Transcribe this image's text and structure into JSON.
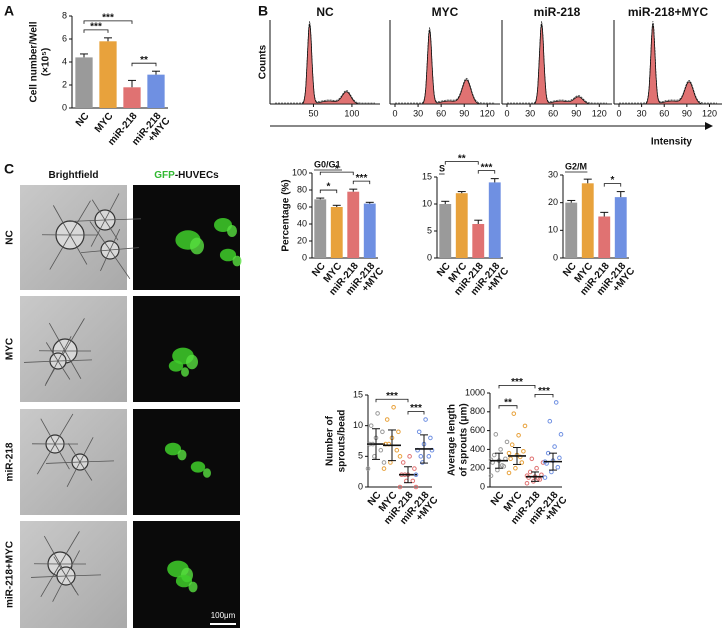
{
  "panel_labels": [
    "A",
    "B",
    "C"
  ],
  "flow": {
    "ylabel": "Counts",
    "xlabel": "Intensity",
    "panels": [
      {
        "title": "NC",
        "xlim": [
          0,
          130
        ],
        "xticks": [
          50,
          100
        ]
      },
      {
        "title": "MYC",
        "xlim": [
          0,
          130
        ],
        "xticks": [
          0,
          30,
          60,
          90,
          120
        ]
      },
      {
        "title": "miR-218",
        "xlim": [
          0,
          130
        ],
        "xticks": [
          0,
          30,
          60,
          90,
          120
        ]
      },
      {
        "title": "miR-218+MYC",
        "xlim": [
          0,
          130
        ],
        "xticks": [
          0,
          30,
          60,
          90,
          120
        ]
      }
    ]
  },
  "images": {
    "columns": [
      {
        "parts": [
          "Brightfield"
        ]
      },
      {
        "parts": [
          "GFP",
          "-HUVECs"
        ]
      }
    ],
    "rows": [
      "NC",
      "MYC",
      "miR-218",
      "miR-218+MYC"
    ],
    "scale": "100μm"
  },
  "chart_data": [
    {
      "type": "bar",
      "ylabel": [
        "Cell number/Well",
        "(×10⁵)"
      ],
      "categories": [
        [
          "NC"
        ],
        [
          "MYC"
        ],
        [
          "miR-218"
        ],
        [
          "miR-218",
          "+MYC"
        ]
      ],
      "values": [
        4.4,
        5.8,
        1.8,
        2.9
      ],
      "errors": [
        0.3,
        0.3,
        0.6,
        0.3
      ],
      "colors": [
        "#9a9a9a",
        "#e8a23c",
        "#e07272",
        "#6f90e2"
      ],
      "ylim": [
        0,
        8
      ],
      "yticks": [
        0,
        2,
        4,
        6,
        8
      ],
      "significance": [
        {
          "pair": [
            0,
            1
          ],
          "label": "***"
        },
        {
          "pair": [
            2,
            3
          ],
          "label": "**"
        },
        {
          "pair": [
            0,
            2
          ],
          "label": "***"
        }
      ]
    },
    {
      "type": "bar",
      "title": "G0/G1",
      "ylabel": [
        "Percentage (%)"
      ],
      "categories": [
        [
          "NC"
        ],
        [
          "MYC"
        ],
        [
          "miR-218"
        ],
        [
          "miR-218",
          "+MYC"
        ]
      ],
      "values": [
        69,
        60,
        78,
        64
      ],
      "errors": [
        1.5,
        2,
        3,
        1.5
      ],
      "colors": [
        "#9a9a9a",
        "#e8a23c",
        "#e07272",
        "#6f90e2"
      ],
      "ylim": [
        0,
        100
      ],
      "yticks": [
        0,
        20,
        40,
        60,
        80,
        100
      ],
      "significance": [
        {
          "pair": [
            0,
            1
          ],
          "label": "*"
        },
        {
          "pair": [
            2,
            3
          ],
          "label": "***"
        },
        {
          "pair": [
            0,
            2
          ],
          "label": "*"
        }
      ]
    },
    {
      "type": "bar",
      "title": "S",
      "categories": [
        [
          "NC"
        ],
        [
          "MYC"
        ],
        [
          "miR-218"
        ],
        [
          "miR-218",
          "+MYC"
        ]
      ],
      "values": [
        10,
        12,
        6.3,
        14
      ],
      "errors": [
        0.5,
        0.3,
        0.7,
        0.7
      ],
      "colors": [
        "#9a9a9a",
        "#e8a23c",
        "#e07272",
        "#6f90e2"
      ],
      "ylim": [
        0,
        15
      ],
      "yticks": [
        0,
        5,
        10,
        15
      ],
      "significance": [
        {
          "pair": [
            2,
            3
          ],
          "label": "***"
        },
        {
          "pair": [
            0,
            2
          ],
          "label": "**"
        }
      ]
    },
    {
      "type": "bar",
      "title": "G2/M",
      "categories": [
        [
          "NC"
        ],
        [
          "MYC"
        ],
        [
          "miR-218"
        ],
        [
          "miR-218",
          "+MYC"
        ]
      ],
      "values": [
        20,
        27,
        15,
        22
      ],
      "errors": [
        0.8,
        1.5,
        1.5,
        2
      ],
      "colors": [
        "#9a9a9a",
        "#e8a23c",
        "#e07272",
        "#6f90e2"
      ],
      "ylim": [
        0,
        30
      ],
      "yticks": [
        0,
        10,
        20,
        30
      ],
      "significance": [
        {
          "pair": [
            2,
            3
          ],
          "label": "*"
        }
      ]
    },
    {
      "type": "scatter",
      "ylabel": [
        "Number of",
        "sprouts/bead"
      ],
      "categories": [
        [
          "NC"
        ],
        [
          "MYC"
        ],
        [
          "miR-218"
        ],
        [
          "miR-218",
          "+MYC"
        ]
      ],
      "colors": [
        "#9a9a9a",
        "#e8a23c",
        "#e07272",
        "#6f90e2"
      ],
      "points": [
        [
          3,
          5,
          6,
          7,
          8,
          9,
          10,
          12,
          4,
          7
        ],
        [
          3,
          4,
          6,
          7,
          8,
          9,
          11,
          13,
          5,
          7
        ],
        [
          0,
          1,
          1,
          2,
          2,
          3,
          4,
          5,
          0,
          2
        ],
        [
          2,
          4,
          5,
          6,
          7,
          8,
          9,
          11,
          6,
          5
        ]
      ],
      "values": [
        7,
        6.8,
        2,
        6.2
      ],
      "errors": [
        2.5,
        2.5,
        1.3,
        2.3
      ],
      "ylim": [
        0,
        15
      ],
      "yticks": [
        0,
        5,
        10,
        15
      ],
      "significance": [
        {
          "pair": [
            2,
            3
          ],
          "label": "***"
        },
        {
          "pair": [
            0,
            2
          ],
          "label": "***"
        }
      ]
    },
    {
      "type": "scatter",
      "ylabel": [
        "Average length",
        "of sprouts (μm)"
      ],
      "categories": [
        [
          "NC"
        ],
        [
          "MYC"
        ],
        [
          "miR-218"
        ],
        [
          "miR-218",
          "+MYC"
        ]
      ],
      "colors": [
        "#9a9a9a",
        "#e8a23c",
        "#e07272",
        "#6f90e2"
      ],
      "points": [
        [
          120,
          180,
          220,
          260,
          280,
          300,
          340,
          400,
          480,
          560,
          230,
          290
        ],
        [
          150,
          200,
          260,
          300,
          340,
          380,
          450,
          550,
          650,
          780,
          320,
          360
        ],
        [
          40,
          60,
          80,
          100,
          110,
          130,
          160,
          200,
          260,
          300,
          90,
          120
        ],
        [
          100,
          160,
          210,
          250,
          280,
          310,
          360,
          430,
          560,
          700,
          900,
          270
        ]
      ],
      "values": [
        280,
        330,
        110,
        270
      ],
      "errors": [
        80,
        90,
        50,
        90
      ],
      "ylim": [
        0,
        1000
      ],
      "yticks": [
        0,
        200,
        400,
        600,
        800,
        1000
      ],
      "significance": [
        {
          "pair": [
            0,
            1
          ],
          "label": "**"
        },
        {
          "pair": [
            2,
            3
          ],
          "label": "***"
        },
        {
          "pair": [
            0,
            2
          ],
          "label": "***"
        }
      ]
    }
  ]
}
